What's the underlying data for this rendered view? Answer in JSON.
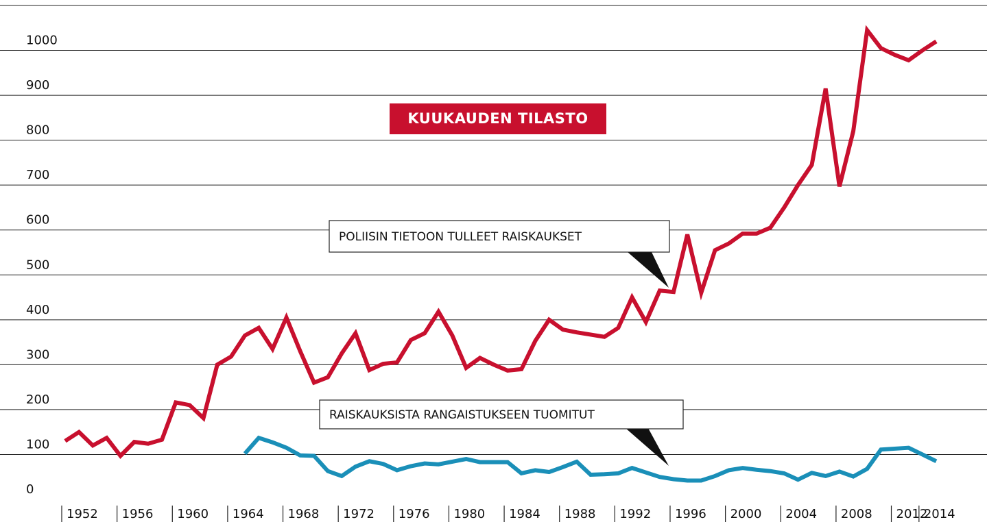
{
  "chart_data": {
    "type": "line",
    "title": "KUUKAUDEN TILASTO",
    "annotations": [
      "POLIISIN TIETOON TULLEET RAISKAUKSET",
      "RAISKAUKSISTA RANGAISTUKSEEN TUOMITUT"
    ],
    "xlim": [
      1952,
      2015
    ],
    "xticks": [
      1952,
      1956,
      1960,
      1964,
      1968,
      1972,
      1976,
      1980,
      1984,
      1988,
      1992,
      1996,
      2000,
      2004,
      2008,
      2012,
      2014
    ],
    "ylim": [
      0,
      1100
    ],
    "yticks": [
      0,
      100,
      200,
      300,
      400,
      500,
      600,
      700,
      800,
      900,
      1000
    ],
    "grid": true,
    "series": [
      {
        "name": "POLIISIN TIETOON TULLEET RAISKAUKSET",
        "color": "#c8102e",
        "x": [
          1952,
          1953,
          1954,
          1955,
          1956,
          1957,
          1958,
          1959,
          1960,
          1961,
          1962,
          1963,
          1964,
          1965,
          1966,
          1967,
          1968,
          1969,
          1970,
          1971,
          1972,
          1973,
          1974,
          1975,
          1976,
          1977,
          1978,
          1979,
          1980,
          1981,
          1982,
          1983,
          1984,
          1985,
          1986,
          1987,
          1988,
          1989,
          1990,
          1991,
          1992,
          1993,
          1994,
          1995,
          1996,
          1997,
          1998,
          1999,
          2000,
          2001,
          2002,
          2003,
          2004,
          2005,
          2006,
          2007,
          2008,
          2009,
          2010,
          2011,
          2012,
          2013,
          2014,
          2015
        ],
        "values": [
          130,
          150,
          120,
          137,
          97,
          128,
          124,
          133,
          216,
          210,
          181,
          300,
          318,
          365,
          382,
          335,
          405,
          330,
          260,
          272,
          325,
          370,
          288,
          302,
          305,
          355,
          370,
          418,
          365,
          293,
          315,
          300,
          287,
          290,
          353,
          400,
          378,
          372,
          367,
          362,
          382,
          450,
          395,
          465,
          462,
          590,
          460,
          555,
          570,
          592,
          592,
          605,
          650,
          700,
          745,
          915,
          697,
          820,
          1045,
          1005,
          990,
          978,
          1000,
          1020
        ]
      },
      {
        "name": "RAISKAUKSISTA RANGAISTUKSEEN TUOMITUT",
        "color": "#1a8fb8",
        "x": [
          1965,
          1966,
          1967,
          1968,
          1969,
          1970,
          1971,
          1972,
          1973,
          1974,
          1975,
          1976,
          1977,
          1978,
          1979,
          1980,
          1981,
          1982,
          1983,
          1984,
          1985,
          1986,
          1987,
          1988,
          1989,
          1990,
          1991,
          1992,
          1993,
          1994,
          1995,
          1996,
          1997,
          1998,
          1999,
          2000,
          2001,
          2002,
          2003,
          2004,
          2005,
          2006,
          2007,
          2008,
          2009,
          2010,
          2011,
          2012,
          2013,
          2014,
          2015
        ],
        "values": [
          102,
          137,
          127,
          115,
          98,
          97,
          63,
          52,
          73,
          85,
          79,
          65,
          74,
          80,
          78,
          84,
          90,
          83,
          83,
          83,
          58,
          65,
          61,
          72,
          84,
          55,
          56,
          58,
          70,
          60,
          50,
          45,
          42,
          42,
          52,
          65,
          70,
          66,
          63,
          58,
          44,
          59,
          52,
          62,
          51,
          68,
          111,
          113,
          115,
          100,
          85
        ]
      }
    ]
  }
}
